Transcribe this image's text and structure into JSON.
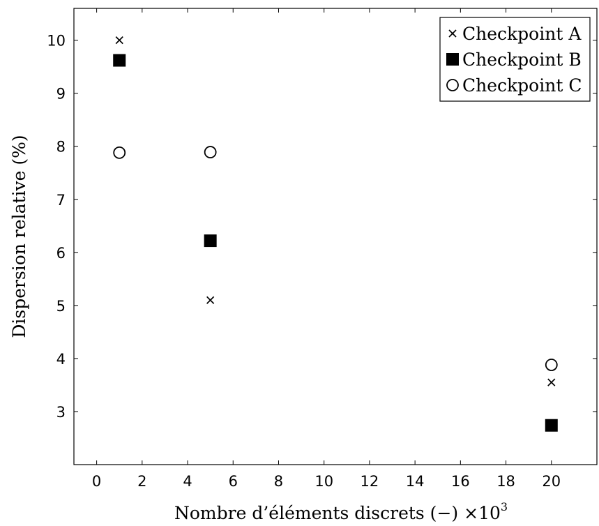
{
  "chart_data": {
    "type": "scatter",
    "xlabel": "Nombre d’éléments discrets (−)",
    "x_multiplier": "×10",
    "x_multiplier_exp": "3",
    "ylabel": "Dispersion relative (%)",
    "xlim": [
      -1,
      22
    ],
    "ylim": [
      2,
      10.6
    ],
    "xticks": [
      0,
      2,
      4,
      6,
      8,
      10,
      12,
      14,
      16,
      18,
      20
    ],
    "yticks": [
      3,
      4,
      5,
      6,
      7,
      8,
      9,
      10
    ],
    "grid": false,
    "legend_position": "top-right",
    "series": [
      {
        "name": "Checkpoint A",
        "marker": "x",
        "points": [
          [
            1,
            10.0
          ],
          [
            5,
            5.1
          ],
          [
            20,
            3.55
          ]
        ]
      },
      {
        "name": "Checkpoint B",
        "marker": "square",
        "points": [
          [
            1,
            9.62
          ],
          [
            5,
            6.22
          ],
          [
            20,
            2.74
          ]
        ]
      },
      {
        "name": "Checkpoint C",
        "marker": "circle",
        "points": [
          [
            1,
            7.88
          ],
          [
            5,
            7.89
          ],
          [
            20,
            3.88
          ]
        ]
      }
    ]
  }
}
